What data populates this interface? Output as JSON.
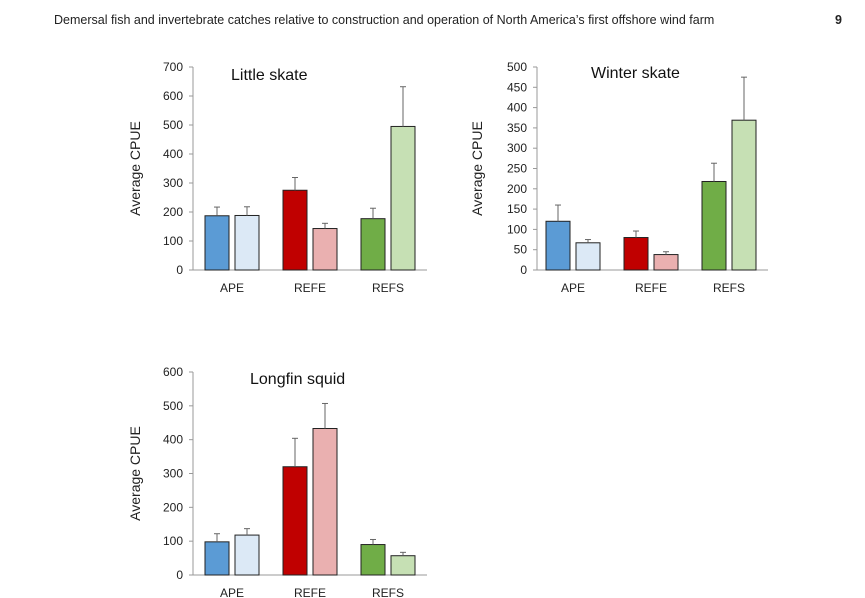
{
  "header": {
    "title": "Demersal fish and invertebrate catches relative to construction and operation of North America’s first offshore wind farm",
    "page_number": "9"
  },
  "colors": {
    "APE_before": "#5b9bd5",
    "APE_after": "#dce9f6",
    "REFE_before": "#c00000",
    "REFE_after": "#eab0b0",
    "REFS_before": "#70ad47",
    "REFS_after": "#c6e0b4",
    "error_bar": "#666666",
    "axis": "#999999"
  },
  "chart_data": [
    {
      "type": "bar",
      "title": "Little skate",
      "ylabel": "Average CPUE",
      "xlabel": "",
      "categories": [
        "APE",
        "REFE",
        "REFS"
      ],
      "ylim": [
        0,
        700
      ],
      "yticks": [
        0,
        100,
        200,
        300,
        400,
        500,
        600,
        700
      ],
      "bars": [
        {
          "category": "APE",
          "value": 187,
          "error": 30
        },
        {
          "category": "APE",
          "value": 188,
          "error": 30
        },
        {
          "category": "REFE",
          "value": 275,
          "error": 44
        },
        {
          "category": "REFE",
          "value": 143,
          "error": 18
        },
        {
          "category": "REFS",
          "value": 177,
          "error": 36
        },
        {
          "category": "REFS",
          "value": 495,
          "error": 137
        }
      ]
    },
    {
      "type": "bar",
      "title": "Winter skate",
      "ylabel": "Average CPUE",
      "xlabel": "",
      "categories": [
        "APE",
        "REFE",
        "REFS"
      ],
      "ylim": [
        0,
        500
      ],
      "yticks": [
        0,
        50,
        100,
        150,
        200,
        250,
        300,
        350,
        400,
        450,
        500
      ],
      "bars": [
        {
          "category": "APE",
          "value": 120,
          "error": 40
        },
        {
          "category": "APE",
          "value": 67,
          "error": 8
        },
        {
          "category": "REFE",
          "value": 80,
          "error": 16
        },
        {
          "category": "REFE",
          "value": 38,
          "error": 7
        },
        {
          "category": "REFS",
          "value": 218,
          "error": 45
        },
        {
          "category": "REFS",
          "value": 369,
          "error": 106
        }
      ]
    },
    {
      "type": "bar",
      "title": "Longfin squid",
      "ylabel": "Average CPUE",
      "xlabel": "",
      "categories": [
        "APE",
        "REFE",
        "REFS"
      ],
      "ylim": [
        0,
        600
      ],
      "yticks": [
        0,
        100,
        200,
        300,
        400,
        500,
        600
      ],
      "bars": [
        {
          "category": "APE",
          "value": 98,
          "error": 24
        },
        {
          "category": "APE",
          "value": 118,
          "error": 19
        },
        {
          "category": "REFE",
          "value": 320,
          "error": 84
        },
        {
          "category": "REFE",
          "value": 433,
          "error": 74
        },
        {
          "category": "REFS",
          "value": 90,
          "error": 15
        },
        {
          "category": "REFS",
          "value": 57,
          "error": 10
        }
      ]
    }
  ]
}
